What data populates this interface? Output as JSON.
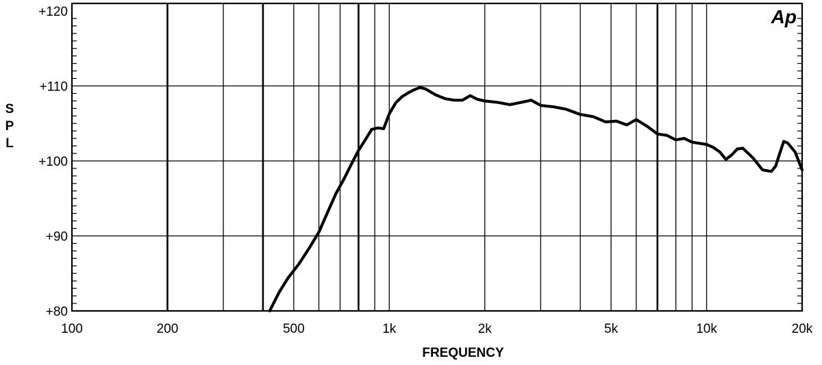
{
  "chart_data": {
    "type": "line",
    "title": "",
    "xlabel": "FREQUENCY",
    "ylabel": "SPL",
    "x_scale": "log",
    "xlim": [
      100,
      20000
    ],
    "ylim": [
      80,
      121
    ],
    "grid": true,
    "logo": "Ap",
    "x_ticks": [
      {
        "value": 100,
        "label": "100"
      },
      {
        "value": 200,
        "label": "200"
      },
      {
        "value": 500,
        "label": "500"
      },
      {
        "value": 1000,
        "label": "1k"
      },
      {
        "value": 2000,
        "label": "2k"
      },
      {
        "value": 5000,
        "label": "5k"
      },
      {
        "value": 10000,
        "label": "10k"
      },
      {
        "value": 20000,
        "label": "20k"
      }
    ],
    "y_ticks": [
      {
        "value": 80,
        "label": "+80"
      },
      {
        "value": 90,
        "label": "+90"
      },
      {
        "value": 100,
        "label": "+100"
      },
      {
        "value": 110,
        "label": "+110"
      },
      {
        "value": 120,
        "label": "+120"
      }
    ],
    "x_gridlines": [
      200,
      300,
      400,
      500,
      600,
      700,
      800,
      900,
      1000,
      2000,
      3000,
      4000,
      5000,
      6000,
      7000,
      8000,
      9000,
      10000
    ],
    "x_gridlines_bold": [
      200,
      400,
      800,
      7000
    ],
    "y_gridlines": [
      90,
      100,
      110
    ],
    "series": [
      {
        "color": "#000000",
        "x": [
          420,
          450,
          480,
          520,
          560,
          600,
          640,
          680,
          720,
          760,
          800,
          840,
          880,
          920,
          960,
          1000,
          1050,
          1100,
          1150,
          1200,
          1250,
          1300,
          1400,
          1500,
          1600,
          1700,
          1800,
          1900,
          2000,
          2200,
          2400,
          2600,
          2800,
          3000,
          3300,
          3600,
          4000,
          4400,
          4800,
          5200,
          5600,
          6000,
          6500,
          7000,
          7500,
          8000,
          8500,
          9000,
          10000,
          10500,
          11000,
          11500,
          12000,
          12500,
          13000,
          14000,
          15000,
          16000,
          16500,
          17000,
          17500,
          18000,
          19000,
          20000
        ],
        "y": [
          80,
          82.5,
          84.4,
          86.3,
          88.4,
          90.5,
          93.2,
          95.7,
          97.6,
          99.6,
          101.4,
          102.8,
          104.2,
          104.4,
          104.3,
          106.3,
          107.8,
          108.6,
          109.1,
          109.5,
          109.8,
          109.6,
          108.8,
          108.3,
          108.1,
          108.1,
          108.7,
          108.2,
          108,
          107.8,
          107.5,
          107.8,
          108.1,
          107.4,
          107.2,
          106.9,
          106.2,
          105.9,
          105.2,
          105.3,
          104.8,
          105.5,
          104.6,
          103.6,
          103.4,
          102.8,
          103.0,
          102.5,
          102.2,
          101.8,
          101.2,
          100.2,
          100.8,
          101.6,
          101.7,
          100.4,
          98.8,
          98.6,
          99.3,
          101.0,
          102.6,
          102.4,
          101.2,
          98.8
        ]
      }
    ]
  }
}
